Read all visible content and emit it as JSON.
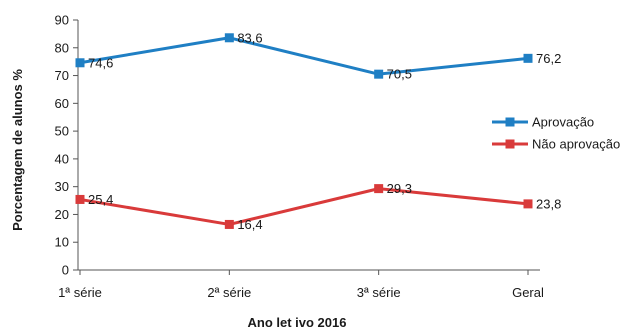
{
  "chart_data": {
    "type": "line",
    "title": "",
    "xlabel": "Ano let ivo 2016",
    "ylabel": "Porcentagem de alunos %",
    "categories": [
      "1ª série",
      "2ª série",
      "3ª série",
      "Geral"
    ],
    "ylim": [
      0,
      90
    ],
    "yticks": [
      0,
      10,
      20,
      30,
      40,
      50,
      60,
      70,
      80,
      90
    ],
    "grid": false,
    "legend_position": "right",
    "series": [
      {
        "name": "Aprovação",
        "color": "#1f7fc4",
        "values": [
          74.6,
          83.6,
          70.5,
          76.2
        ],
        "labels": [
          "74,6",
          "83,6",
          "70,5",
          "76,2"
        ]
      },
      {
        "name": "Não aprovação",
        "color": "#d93a3a",
        "values": [
          25.4,
          16.4,
          29.3,
          23.8
        ],
        "labels": [
          "25,4",
          "16,4",
          "29,3",
          "23,8"
        ]
      }
    ]
  }
}
